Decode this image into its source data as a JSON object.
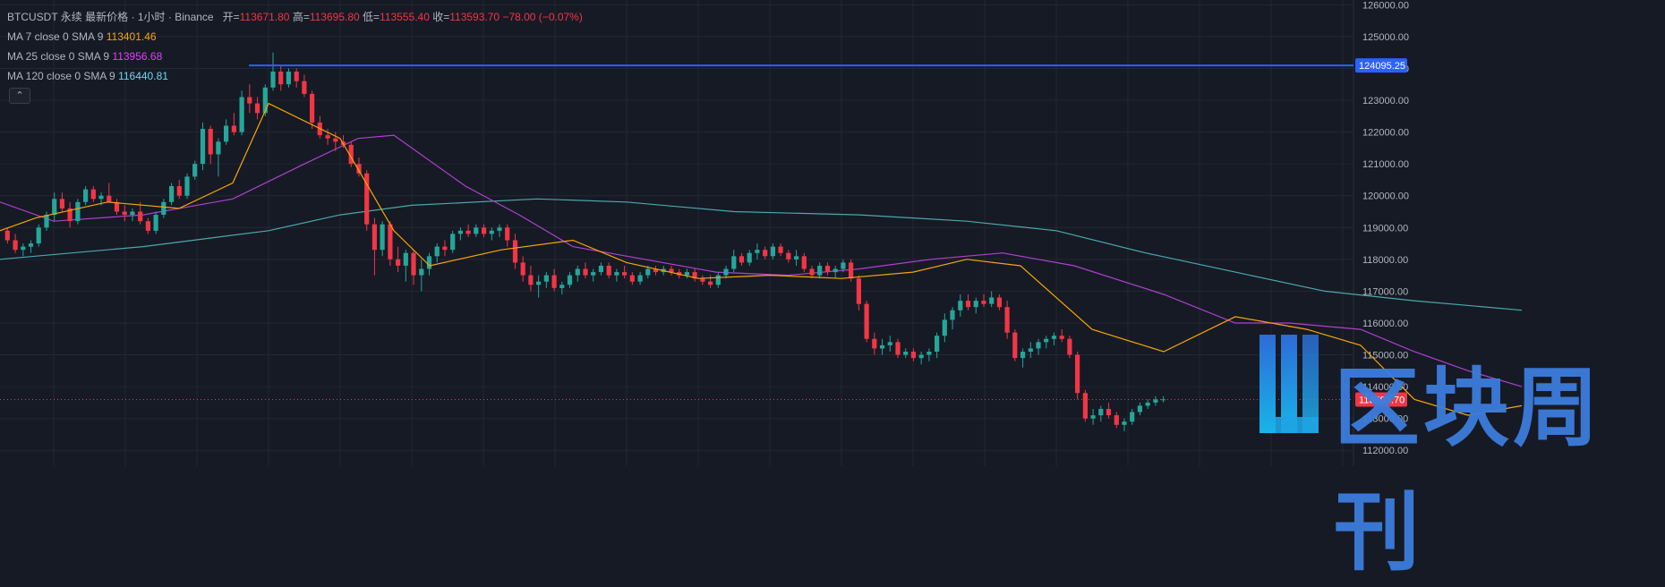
{
  "header": {
    "symbol": "BTCUSDT",
    "contract": "永续",
    "price_type": "最新价格",
    "interval": "1小时",
    "exchange": "Binance",
    "open_label": "开=",
    "open": "113671.80",
    "high_label": "高=",
    "high": "113695.80",
    "low_label": "低=",
    "low": "113555.40",
    "close_label": "收=",
    "close": "113593.70",
    "change": "−78.00 (−0.07%)"
  },
  "indicators": [
    {
      "label": "MA 7 close 0 SMA 9",
      "value": "113401.46",
      "color": "#f7a600"
    },
    {
      "label": "MA 25 close 0 SMA 9",
      "value": "113956.68",
      "color": "#e040fb"
    },
    {
      "label": "MA 120 close 0 SMA 9",
      "value": "116440.81",
      "color": "#66d9ef"
    }
  ],
  "collapse_glyph": "⌃",
  "watermark": {
    "text": "区块周刊"
  },
  "chart_data": {
    "type": "candlestick",
    "y_ticks": [
      "126000.00",
      "125000.00",
      "124000.00",
      "123000.00",
      "122000.00",
      "121000.00",
      "120000.00",
      "119000.00",
      "118000.00",
      "117000.00",
      "116000.00",
      "115000.00",
      "114000.00",
      "113000.00",
      "112000.00"
    ],
    "ylim": [
      111500,
      126150
    ],
    "highlight_price": "124095.25",
    "last_price": "113593.70",
    "colors": {
      "up": "#26a69a",
      "down": "#f23645",
      "ma7": "#f7a600",
      "ma25": "#b040d0",
      "ma120": "#4aa8b0",
      "hline": "#2962ff"
    },
    "candles": [
      [
        118900,
        119000,
        118500,
        118600
      ],
      [
        118600,
        118800,
        118200,
        118300
      ],
      [
        118300,
        118500,
        118100,
        118400
      ],
      [
        118400,
        118600,
        118200,
        118500
      ],
      [
        118500,
        119100,
        118400,
        119000
      ],
      [
        119000,
        119500,
        118900,
        119400
      ],
      [
        119400,
        120100,
        119200,
        119900
      ],
      [
        119900,
        120100,
        119500,
        119600
      ],
      [
        119600,
        119800,
        119000,
        119200
      ],
      [
        119200,
        119900,
        119100,
        119800
      ],
      [
        119800,
        120300,
        119700,
        120200
      ],
      [
        120200,
        120300,
        119800,
        119900
      ],
      [
        119900,
        120100,
        119700,
        120000
      ],
      [
        120000,
        120400,
        119800,
        119800
      ],
      [
        119800,
        119900,
        119400,
        119500
      ],
      [
        119500,
        119700,
        119200,
        119400
      ],
      [
        119400,
        119600,
        119200,
        119500
      ],
      [
        119500,
        119800,
        119100,
        119200
      ],
      [
        119200,
        119300,
        118800,
        118900
      ],
      [
        118900,
        119500,
        118800,
        119400
      ],
      [
        119400,
        119900,
        119300,
        119800
      ],
      [
        119800,
        120400,
        119700,
        120300
      ],
      [
        120300,
        120500,
        119900,
        120000
      ],
      [
        120000,
        120700,
        119900,
        120600
      ],
      [
        120600,
        121100,
        120500,
        121000
      ],
      [
        121000,
        122300,
        120800,
        122100
      ],
      [
        122100,
        122200,
        121000,
        121300
      ],
      [
        121300,
        121800,
        120600,
        121700
      ],
      [
        121700,
        122400,
        121600,
        122200
      ],
      [
        122200,
        122600,
        121900,
        122000
      ],
      [
        122000,
        123300,
        121900,
        123100
      ],
      [
        123100,
        123500,
        122600,
        122900
      ],
      [
        122900,
        123100,
        122400,
        122600
      ],
      [
        122600,
        123500,
        122500,
        123400
      ],
      [
        123400,
        124500,
        123300,
        123900
      ],
      [
        123900,
        124100,
        123300,
        123500
      ],
      [
        123500,
        124000,
        123400,
        123900
      ],
      [
        123900,
        124000,
        123400,
        123600
      ],
      [
        123600,
        123800,
        123100,
        123200
      ],
      [
        123200,
        123300,
        122100,
        122300
      ],
      [
        122300,
        122500,
        121800,
        121900
      ],
      [
        121900,
        122100,
        121600,
        121800
      ],
      [
        121800,
        122000,
        121400,
        121700
      ],
      [
        121700,
        121900,
        121500,
        121600
      ],
      [
        121600,
        121700,
        120900,
        121000
      ],
      [
        121000,
        121200,
        120600,
        120700
      ],
      [
        120700,
        120800,
        118900,
        119100
      ],
      [
        119100,
        119300,
        117500,
        118300
      ],
      [
        118300,
        119200,
        118100,
        119100
      ],
      [
        119100,
        119200,
        117800,
        118000
      ],
      [
        118000,
        118400,
        117600,
        117800
      ],
      [
        117800,
        118300,
        117300,
        118200
      ],
      [
        118200,
        118300,
        117200,
        117500
      ],
      [
        117500,
        118000,
        117000,
        117700
      ],
      [
        117700,
        118200,
        117500,
        118100
      ],
      [
        118100,
        118500,
        117900,
        118400
      ],
      [
        118400,
        118600,
        118100,
        118300
      ],
      [
        118300,
        118900,
        118200,
        118800
      ],
      [
        118800,
        119000,
        118600,
        118900
      ],
      [
        118900,
        119100,
        118700,
        118800
      ],
      [
        118800,
        119100,
        118700,
        119000
      ],
      [
        119000,
        119100,
        118700,
        118800
      ],
      [
        118800,
        119000,
        118600,
        118900
      ],
      [
        118900,
        119100,
        118700,
        119000
      ],
      [
        119000,
        119100,
        118400,
        118600
      ],
      [
        118600,
        118800,
        117700,
        117900
      ],
      [
        117900,
        118100,
        117300,
        117500
      ],
      [
        117500,
        117800,
        117000,
        117200
      ],
      [
        117200,
        117500,
        116800,
        117300
      ],
      [
        117300,
        117600,
        117100,
        117500
      ],
      [
        117500,
        117700,
        117000,
        117100
      ],
      [
        117100,
        117300,
        116900,
        117200
      ],
      [
        117200,
        117600,
        117100,
        117500
      ],
      [
        117500,
        117800,
        117300,
        117700
      ],
      [
        117700,
        117900,
        117400,
        117500
      ],
      [
        117500,
        117700,
        117300,
        117600
      ],
      [
        117600,
        117900,
        117500,
        117800
      ],
      [
        117800,
        117900,
        117400,
        117500
      ],
      [
        117500,
        117700,
        117300,
        117600
      ],
      [
        117600,
        117800,
        117400,
        117500
      ],
      [
        117500,
        117600,
        117200,
        117300
      ],
      [
        117300,
        117600,
        117200,
        117500
      ],
      [
        117500,
        117800,
        117400,
        117700
      ],
      [
        117700,
        117800,
        117500,
        117600
      ],
      [
        117600,
        117800,
        117500,
        117700
      ],
      [
        117700,
        117800,
        117500,
        117600
      ],
      [
        117600,
        117700,
        117400,
        117500
      ],
      [
        117500,
        117700,
        117400,
        117600
      ],
      [
        117600,
        117700,
        117300,
        117400
      ],
      [
        117400,
        117500,
        117200,
        117300
      ],
      [
        117300,
        117500,
        117100,
        117200
      ],
      [
        117200,
        117600,
        117100,
        117500
      ],
      [
        117500,
        117800,
        117400,
        117700
      ],
      [
        117700,
        118300,
        117600,
        118100
      ],
      [
        118100,
        118200,
        117800,
        117900
      ],
      [
        117900,
        118300,
        117800,
        118200
      ],
      [
        118200,
        118500,
        118000,
        118300
      ],
      [
        118300,
        118400,
        118000,
        118100
      ],
      [
        118100,
        118500,
        118000,
        118400
      ],
      [
        118400,
        118500,
        118100,
        118200
      ],
      [
        118200,
        118300,
        117900,
        118000
      ],
      [
        118000,
        118300,
        117800,
        118100
      ],
      [
        118100,
        118200,
        117600,
        117700
      ],
      [
        117700,
        117800,
        117400,
        117500
      ],
      [
        117500,
        117900,
        117400,
        117800
      ],
      [
        117800,
        117900,
        117500,
        117600
      ],
      [
        117600,
        117800,
        117400,
        117700
      ],
      [
        117700,
        118000,
        117600,
        117900
      ],
      [
        117900,
        118000,
        117300,
        117400
      ],
      [
        117400,
        117500,
        116400,
        116600
      ],
      [
        116600,
        116700,
        115400,
        115500
      ],
      [
        115500,
        115700,
        115000,
        115200
      ],
      [
        115200,
        115500,
        115000,
        115300
      ],
      [
        115300,
        115600,
        115100,
        115400
      ],
      [
        115400,
        115500,
        114900,
        115000
      ],
      [
        115000,
        115200,
        114900,
        115100
      ],
      [
        115100,
        115200,
        114800,
        114900
      ],
      [
        114900,
        115100,
        114700,
        115000
      ],
      [
        115000,
        115200,
        114800,
        115100
      ],
      [
        115100,
        115700,
        114900,
        115600
      ],
      [
        115600,
        116300,
        115400,
        116100
      ],
      [
        116100,
        116500,
        115800,
        116400
      ],
      [
        116400,
        116900,
        116200,
        116700
      ],
      [
        116700,
        116900,
        116400,
        116500
      ],
      [
        116500,
        116800,
        116300,
        116700
      ],
      [
        116700,
        116900,
        116500,
        116600
      ],
      [
        116600,
        117000,
        116500,
        116800
      ],
      [
        116800,
        116900,
        116400,
        116500
      ],
      [
        116500,
        116700,
        115500,
        115700
      ],
      [
        115700,
        115800,
        114800,
        114900
      ],
      [
        114900,
        115200,
        114600,
        115100
      ],
      [
        115100,
        115400,
        114900,
        115200
      ],
      [
        115200,
        115500,
        115000,
        115400
      ],
      [
        115400,
        115600,
        115200,
        115500
      ],
      [
        115500,
        115700,
        115300,
        115600
      ],
      [
        115600,
        115800,
        115400,
        115500
      ],
      [
        115500,
        115600,
        114900,
        115000
      ],
      [
        115000,
        115100,
        113600,
        113800
      ],
      [
        113800,
        113900,
        112900,
        113000
      ],
      [
        113000,
        113300,
        112800,
        113100
      ],
      [
        113100,
        113400,
        112900,
        113300
      ],
      [
        113300,
        113500,
        113000,
        113100
      ],
      [
        113100,
        113200,
        112700,
        112800
      ],
      [
        112800,
        113000,
        112600,
        112900
      ],
      [
        112900,
        113300,
        112800,
        113200
      ],
      [
        113200,
        113500,
        113100,
        113400
      ],
      [
        113400,
        113600,
        113300,
        113500
      ],
      [
        113500,
        113700,
        113400,
        113600
      ],
      [
        113600,
        113700,
        113500,
        113600
      ]
    ],
    "ma7": [
      [
        0,
        118900
      ],
      [
        40,
        119300
      ],
      [
        120,
        119800
      ],
      [
        200,
        119600
      ],
      [
        260,
        120400
      ],
      [
        300,
        122900
      ],
      [
        380,
        121800
      ],
      [
        440,
        118900
      ],
      [
        480,
        117800
      ],
      [
        560,
        118300
      ],
      [
        640,
        118600
      ],
      [
        700,
        117900
      ],
      [
        780,
        117400
      ],
      [
        860,
        117500
      ],
      [
        940,
        117400
      ],
      [
        1020,
        117600
      ],
      [
        1080,
        118000
      ],
      [
        1140,
        117800
      ],
      [
        1220,
        115800
      ],
      [
        1300,
        115100
      ],
      [
        1380,
        116200
      ],
      [
        1460,
        115800
      ],
      [
        1520,
        115300
      ],
      [
        1580,
        113600
      ],
      [
        1640,
        113100
      ],
      [
        1700,
        113400
      ]
    ],
    "ma25": [
      [
        0,
        119800
      ],
      [
        60,
        119200
      ],
      [
        160,
        119400
      ],
      [
        260,
        119900
      ],
      [
        340,
        121000
      ],
      [
        400,
        121800
      ],
      [
        440,
        121900
      ],
      [
        520,
        120300
      ],
      [
        580,
        119400
      ],
      [
        640,
        118400
      ],
      [
        720,
        118000
      ],
      [
        800,
        117600
      ],
      [
        880,
        117500
      ],
      [
        960,
        117700
      ],
      [
        1040,
        118000
      ],
      [
        1120,
        118200
      ],
      [
        1200,
        117800
      ],
      [
        1300,
        116900
      ],
      [
        1380,
        116000
      ],
      [
        1440,
        116000
      ],
      [
        1520,
        115800
      ],
      [
        1580,
        115100
      ],
      [
        1640,
        114500
      ],
      [
        1700,
        114000
      ]
    ],
    "ma120": [
      [
        0,
        118000
      ],
      [
        160,
        118400
      ],
      [
        300,
        118900
      ],
      [
        380,
        119400
      ],
      [
        460,
        119700
      ],
      [
        600,
        119900
      ],
      [
        700,
        119800
      ],
      [
        820,
        119500
      ],
      [
        960,
        119400
      ],
      [
        1080,
        119200
      ],
      [
        1180,
        118900
      ],
      [
        1280,
        118200
      ],
      [
        1380,
        117600
      ],
      [
        1480,
        117000
      ],
      [
        1580,
        116700
      ],
      [
        1700,
        116400
      ]
    ]
  }
}
